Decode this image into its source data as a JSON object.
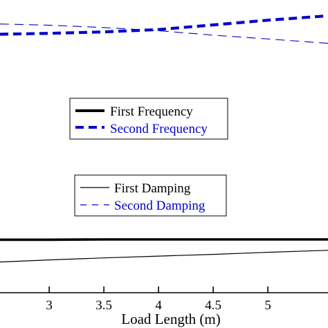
{
  "chart_data": {
    "type": "line",
    "xlabel": "Load Length (m)",
    "xlim": [
      2.55,
      5.55
    ],
    "ylim": [
      0,
      1
    ],
    "x_ticks": [
      3,
      3.5,
      4,
      4.5,
      5
    ],
    "x_tick_labels": [
      "3",
      "3.5",
      "4",
      "4.5",
      "5"
    ],
    "series": [
      {
        "name": "First Frequency",
        "color": "#000000",
        "style": "solid-thick",
        "x": [
          2.55,
          3.0,
          3.5,
          4.0,
          4.5,
          5.0,
          5.55
        ],
        "y": [
          0.181,
          0.181,
          0.182,
          0.182,
          0.182,
          0.182,
          0.182
        ]
      },
      {
        "name": "Second Frequency",
        "color": "#0000CC",
        "style": "dashed-thick",
        "x": [
          2.55,
          3.0,
          3.5,
          4.0,
          4.5,
          5.0,
          5.55
        ],
        "y": [
          0.883,
          0.886,
          0.891,
          0.899,
          0.915,
          0.931,
          0.946
        ]
      },
      {
        "name": "First Damping",
        "color": "#000000",
        "style": "solid-thin",
        "x": [
          2.55,
          3.0,
          3.5,
          4.0,
          4.5,
          5.0,
          5.55
        ],
        "y": [
          0.105,
          0.112,
          0.119,
          0.125,
          0.131,
          0.138,
          0.145
        ]
      },
      {
        "name": "Second Damping",
        "color": "#0000CC",
        "style": "dashed-thin",
        "x": [
          2.55,
          3.0,
          3.5,
          4.0,
          4.5,
          5.0,
          5.55
        ],
        "y": [
          0.918,
          0.914,
          0.906,
          0.895,
          0.88,
          0.867,
          0.852
        ]
      }
    ],
    "legends": [
      {
        "entries": [
          "First Frequency",
          "Second Frequency"
        ]
      },
      {
        "entries": [
          "First Damping",
          "Second Damping"
        ]
      }
    ]
  }
}
